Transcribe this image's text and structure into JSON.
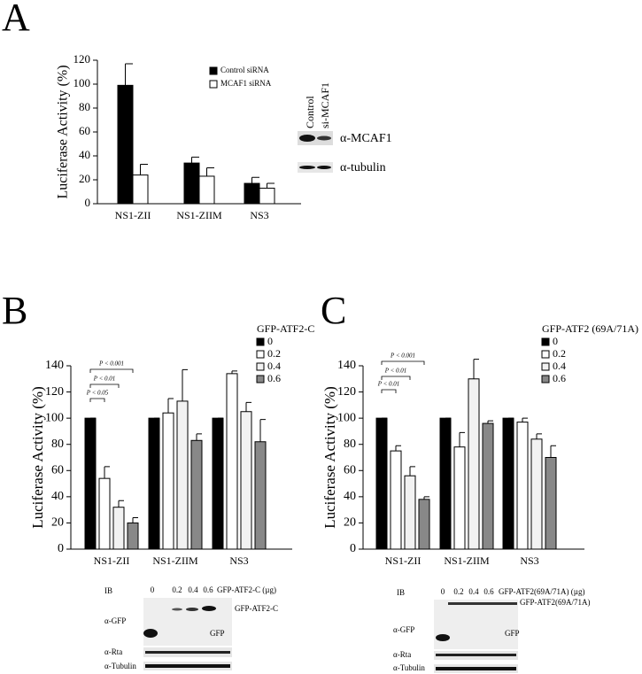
{
  "chart_data": [
    {
      "type": "bar",
      "panel": "A",
      "ylabel": "Luciferase Activity (%)",
      "categories": [
        "NS1-ZII",
        "NS1-ZIIM",
        "NS3"
      ],
      "series": [
        {
          "name": "Control siRNA",
          "color": "#000000",
          "values": [
            99,
            34,
            17
          ],
          "errors": [
            18,
            5,
            5
          ]
        },
        {
          "name": "MCAF1 siRNA",
          "color": "#ffffff",
          "values": [
            24,
            23,
            13
          ],
          "errors": [
            9,
            7,
            4
          ]
        }
      ],
      "ylim": [
        0,
        120
      ],
      "yticks": [
        0,
        20,
        40,
        60,
        80,
        100,
        120
      ]
    },
    {
      "type": "bar",
      "panel": "B",
      "ylabel": "Luciferase Activity (%)",
      "legend_title": "GFP-ATF2-C",
      "categories": [
        "NS1-ZII",
        "NS1-ZIIM",
        "NS3"
      ],
      "series": [
        {
          "name": "0",
          "color": "#000000",
          "values": [
            100,
            100,
            100
          ],
          "errors": [
            0,
            0,
            0
          ]
        },
        {
          "name": "0.2",
          "color": "#ffffff",
          "values": [
            54,
            104,
            134
          ],
          "errors": [
            9,
            11,
            2
          ]
        },
        {
          "name": "0.4",
          "color": "#f2f2f2",
          "values": [
            32,
            113,
            105
          ],
          "errors": [
            5,
            24,
            7
          ]
        },
        {
          "name": "0.6",
          "color": "#888888",
          "values": [
            20,
            83,
            82
          ],
          "errors": [
            4,
            5,
            17
          ]
        }
      ],
      "annotations": [
        "P < 0.05",
        "P < 0.01",
        "P < 0.001"
      ],
      "ylim": [
        0,
        140
      ],
      "yticks": [
        0,
        20,
        40,
        60,
        80,
        100,
        120,
        140
      ]
    },
    {
      "type": "bar",
      "panel": "C",
      "ylabel": "Luciferase Activity (%)",
      "legend_title": "GFP-ATF2 (69A/71A)",
      "categories": [
        "NS1-ZII",
        "NS1-ZIIM",
        "NS3"
      ],
      "series": [
        {
          "name": "0",
          "color": "#000000",
          "values": [
            100,
            100,
            100
          ],
          "errors": [
            0,
            0,
            0
          ]
        },
        {
          "name": "0.2",
          "color": "#ffffff",
          "values": [
            75,
            78,
            97
          ],
          "errors": [
            4,
            11,
            3
          ]
        },
        {
          "name": "0.4",
          "color": "#f2f2f2",
          "values": [
            56,
            130,
            84
          ],
          "errors": [
            7,
            15,
            4
          ]
        },
        {
          "name": "0.6",
          "color": "#888888",
          "values": [
            38,
            96,
            70
          ],
          "errors": [
            2,
            2,
            9
          ]
        }
      ],
      "annotations": [
        "P < 0.01",
        "P < 0.01",
        "P < 0.001"
      ],
      "ylim": [
        0,
        140
      ],
      "yticks": [
        0,
        20,
        40,
        60,
        80,
        100,
        120,
        140
      ]
    }
  ],
  "blots": {
    "A": {
      "lanes": [
        "Control",
        "si-MCAF1"
      ],
      "rows": [
        "α-MCAF1",
        "α-tubulin"
      ]
    },
    "B": {
      "ib": "IB",
      "lanes": [
        "0",
        "0.2",
        "0.4",
        "0.6"
      ],
      "unit": "GFP-ATF2-C (µg)",
      "rows": [
        "α-GFP",
        "α-Rta",
        "α-Tubulin"
      ],
      "bands": [
        "GFP-ATF2-C",
        "GFP"
      ]
    },
    "C": {
      "ib": "IB",
      "lanes": [
        "0",
        "0.2",
        "0.4",
        "0.6"
      ],
      "unit": "GFP-ATF2(69A/71A) (µg)",
      "rows": [
        "α-GFP",
        "α-Rta",
        "α-Tubulin"
      ],
      "bands": [
        "GFP-ATF2(69A/71A)",
        "GFP"
      ]
    }
  }
}
